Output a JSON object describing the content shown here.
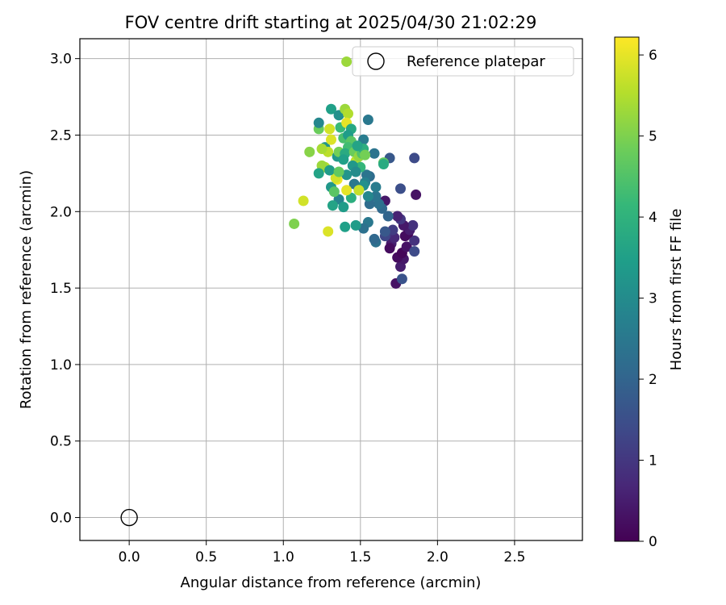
{
  "chart_data": {
    "type": "scatter",
    "title": "FOV centre drift starting at 2025/04/30 21:02:29",
    "xlabel": "Angular distance from reference (arcmin)",
    "ylabel": "Rotation from reference (arcmin)",
    "xlim": [
      -0.32,
      2.94
    ],
    "ylim": [
      -0.15,
      3.13
    ],
    "xticks": [
      "0.0",
      "0.5",
      "1.0",
      "1.5",
      "2.0",
      "2.5"
    ],
    "yticks": [
      "0.0",
      "0.5",
      "1.0",
      "1.5",
      "2.0",
      "2.5",
      "3.0"
    ],
    "grid": true,
    "legend": {
      "position": "top-right",
      "entries": [
        "Reference platepar"
      ]
    },
    "reference_point": {
      "x": 0.0,
      "y": 0.0,
      "name": "Reference platepar"
    },
    "colorbar": {
      "label": "Hours from first FF file",
      "range": [
        0,
        6.22
      ],
      "ticks": [
        "0",
        "1",
        "2",
        "3",
        "4",
        "5",
        "6"
      ],
      "colormap": "viridis"
    },
    "points": [
      {
        "x": 1.73,
        "y": 1.53,
        "h": 0.3
      },
      {
        "x": 1.77,
        "y": 1.56,
        "h": 1.6
      },
      {
        "x": 1.76,
        "y": 1.64,
        "h": 0.5
      },
      {
        "x": 1.78,
        "y": 1.69,
        "h": 0.4
      },
      {
        "x": 1.74,
        "y": 1.7,
        "h": 0.2
      },
      {
        "x": 1.77,
        "y": 1.73,
        "h": 0.1
      },
      {
        "x": 1.8,
        "y": 1.77,
        "h": 0.3
      },
      {
        "x": 1.85,
        "y": 1.74,
        "h": 1.4
      },
      {
        "x": 1.85,
        "y": 1.81,
        "h": 0.9
      },
      {
        "x": 1.81,
        "y": 1.86,
        "h": 0.1
      },
      {
        "x": 1.79,
        "y": 1.84,
        "h": 0.2
      },
      {
        "x": 1.82,
        "y": 1.88,
        "h": 0.5
      },
      {
        "x": 1.84,
        "y": 1.91,
        "h": 0.9
      },
      {
        "x": 1.78,
        "y": 1.91,
        "h": 0.4
      },
      {
        "x": 1.76,
        "y": 1.95,
        "h": 1.0
      },
      {
        "x": 1.74,
        "y": 1.97,
        "h": 0.6
      },
      {
        "x": 1.7,
        "y": 1.79,
        "h": 0.5
      },
      {
        "x": 1.69,
        "y": 1.76,
        "h": 0.2
      },
      {
        "x": 1.72,
        "y": 1.83,
        "h": 0.7
      },
      {
        "x": 1.68,
        "y": 1.86,
        "h": 0.8
      },
      {
        "x": 1.66,
        "y": 1.84,
        "h": 1.3
      },
      {
        "x": 1.71,
        "y": 1.88,
        "h": 1.1
      },
      {
        "x": 1.66,
        "y": 1.87,
        "h": 1.7
      },
      {
        "x": 1.6,
        "y": 1.8,
        "h": 2.3
      },
      {
        "x": 1.59,
        "y": 1.82,
        "h": 2.1
      },
      {
        "x": 1.68,
        "y": 1.97,
        "h": 2.0
      },
      {
        "x": 1.66,
        "y": 2.07,
        "h": 0.4
      },
      {
        "x": 1.86,
        "y": 2.11,
        "h": 0.3
      },
      {
        "x": 1.76,
        "y": 2.15,
        "h": 1.5
      },
      {
        "x": 1.85,
        "y": 2.35,
        "h": 1.4
      },
      {
        "x": 1.69,
        "y": 2.35,
        "h": 1.7
      },
      {
        "x": 1.64,
        "y": 2.02,
        "h": 2.1
      },
      {
        "x": 1.62,
        "y": 2.05,
        "h": 2.3
      },
      {
        "x": 1.6,
        "y": 2.1,
        "h": 2.4
      },
      {
        "x": 1.56,
        "y": 2.05,
        "h": 2.2
      },
      {
        "x": 1.55,
        "y": 1.93,
        "h": 2.5
      },
      {
        "x": 1.52,
        "y": 1.89,
        "h": 2.3
      },
      {
        "x": 1.6,
        "y": 2.16,
        "h": 2.6
      },
      {
        "x": 1.56,
        "y": 2.23,
        "h": 2.2
      },
      {
        "x": 1.54,
        "y": 2.24,
        "h": 2.4
      },
      {
        "x": 1.53,
        "y": 2.19,
        "h": 2.7
      },
      {
        "x": 1.55,
        "y": 2.1,
        "h": 2.9
      },
      {
        "x": 1.52,
        "y": 2.17,
        "h": 3.1
      },
      {
        "x": 1.49,
        "y": 2.14,
        "h": 2.8
      },
      {
        "x": 1.46,
        "y": 2.18,
        "h": 2.5
      },
      {
        "x": 1.59,
        "y": 2.38,
        "h": 2.4
      },
      {
        "x": 1.55,
        "y": 2.6,
        "h": 2.5
      },
      {
        "x": 1.52,
        "y": 2.47,
        "h": 2.6
      },
      {
        "x": 1.47,
        "y": 1.91,
        "h": 3.4
      },
      {
        "x": 1.4,
        "y": 1.9,
        "h": 3.5
      },
      {
        "x": 1.41,
        "y": 2.24,
        "h": 3.2
      },
      {
        "x": 1.36,
        "y": 2.08,
        "h": 2.8
      },
      {
        "x": 1.32,
        "y": 2.04,
        "h": 3.6
      },
      {
        "x": 1.39,
        "y": 2.03,
        "h": 3.4
      },
      {
        "x": 1.31,
        "y": 2.16,
        "h": 3.3
      },
      {
        "x": 1.44,
        "y": 2.09,
        "h": 3.9
      },
      {
        "x": 1.33,
        "y": 2.13,
        "h": 4.6
      },
      {
        "x": 1.35,
        "y": 2.21,
        "h": 6.1
      },
      {
        "x": 1.34,
        "y": 2.22,
        "h": 5.8
      },
      {
        "x": 1.41,
        "y": 2.14,
        "h": 6.0
      },
      {
        "x": 1.49,
        "y": 2.14,
        "h": 5.7
      },
      {
        "x": 1.29,
        "y": 1.87,
        "h": 5.9
      },
      {
        "x": 1.13,
        "y": 2.07,
        "h": 5.8
      },
      {
        "x": 1.07,
        "y": 1.92,
        "h": 5.0
      },
      {
        "x": 1.27,
        "y": 2.29,
        "h": 5.5
      },
      {
        "x": 1.25,
        "y": 2.3,
        "h": 5.3
      },
      {
        "x": 1.23,
        "y": 2.25,
        "h": 3.6
      },
      {
        "x": 1.3,
        "y": 2.27,
        "h": 3.4
      },
      {
        "x": 1.27,
        "y": 2.42,
        "h": 3.2
      },
      {
        "x": 1.29,
        "y": 2.39,
        "h": 5.6
      },
      {
        "x": 1.31,
        "y": 2.47,
        "h": 5.9
      },
      {
        "x": 1.3,
        "y": 2.54,
        "h": 5.8
      },
      {
        "x": 1.17,
        "y": 2.39,
        "h": 5.1
      },
      {
        "x": 1.23,
        "y": 2.54,
        "h": 4.8
      },
      {
        "x": 1.23,
        "y": 2.58,
        "h": 2.9
      },
      {
        "x": 1.31,
        "y": 2.67,
        "h": 3.5
      },
      {
        "x": 1.35,
        "y": 2.36,
        "h": 3.3
      },
      {
        "x": 1.36,
        "y": 2.39,
        "h": 4.9
      },
      {
        "x": 1.39,
        "y": 2.48,
        "h": 4.4
      },
      {
        "x": 1.37,
        "y": 2.55,
        "h": 4.2
      },
      {
        "x": 1.36,
        "y": 2.63,
        "h": 3.1
      },
      {
        "x": 1.4,
        "y": 2.67,
        "h": 5.3
      },
      {
        "x": 1.42,
        "y": 2.64,
        "h": 5.5
      },
      {
        "x": 1.41,
        "y": 2.58,
        "h": 6.0
      },
      {
        "x": 1.44,
        "y": 2.54,
        "h": 3.7
      },
      {
        "x": 1.42,
        "y": 2.5,
        "h": 3.4
      },
      {
        "x": 1.44,
        "y": 2.46,
        "h": 4.6
      },
      {
        "x": 1.42,
        "y": 2.42,
        "h": 4.3
      },
      {
        "x": 1.4,
        "y": 2.38,
        "h": 3.8
      },
      {
        "x": 1.46,
        "y": 2.39,
        "h": 4.8
      },
      {
        "x": 1.47,
        "y": 2.33,
        "h": 5.6
      },
      {
        "x": 1.49,
        "y": 2.36,
        "h": 5.2
      },
      {
        "x": 1.51,
        "y": 2.38,
        "h": 4.5
      },
      {
        "x": 1.52,
        "y": 2.41,
        "h": 3.9
      },
      {
        "x": 1.48,
        "y": 2.43,
        "h": 3.6
      },
      {
        "x": 1.5,
        "y": 2.29,
        "h": 4.1
      },
      {
        "x": 1.45,
        "y": 2.3,
        "h": 3.3
      },
      {
        "x": 1.39,
        "y": 2.34,
        "h": 3.5
      },
      {
        "x": 1.36,
        "y": 2.26,
        "h": 4.7
      },
      {
        "x": 1.47,
        "y": 2.26,
        "h": 3.0
      },
      {
        "x": 1.65,
        "y": 2.32,
        "h": 4.7
      },
      {
        "x": 1.65,
        "y": 2.31,
        "h": 3.8
      },
      {
        "x": 1.41,
        "y": 2.98,
        "h": 5.3
      },
      {
        "x": 1.53,
        "y": 2.37,
        "h": 4.9
      },
      {
        "x": 1.25,
        "y": 2.41,
        "h": 5.4
      }
    ]
  }
}
